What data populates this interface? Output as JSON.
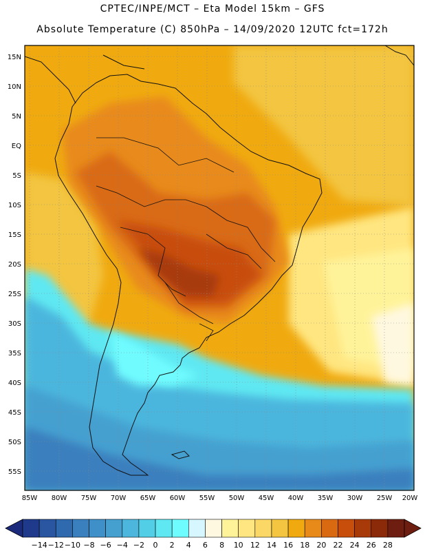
{
  "header": {
    "title_line1": "CPTEC/INPE/MCT –  Eta Model 15km – GFS",
    "title_line2": "Absolute Temperature (C) 850hPa – 14/09/2020 12UTC fct=172h"
  },
  "map": {
    "lat_labels": [
      "15N",
      "10N",
      "5N",
      "EQ",
      "5S",
      "10S",
      "15S",
      "20S",
      "25S",
      "30S",
      "35S",
      "40S",
      "45S",
      "50S",
      "55S"
    ],
    "lon_labels": [
      "85W",
      "80W",
      "75W",
      "70W",
      "65W",
      "60W",
      "55W",
      "50W",
      "45W",
      "40W",
      "35W",
      "30W",
      "25W",
      "20W"
    ],
    "extent": {
      "lon_min": -85.5,
      "lon_max": -19.5,
      "lat_min": -58,
      "lat_max": 17
    }
  },
  "colorbar": {
    "labels": [
      "-14",
      "-12",
      "-10",
      "-8",
      "-6",
      "-4",
      "-2",
      "0",
      "2",
      "4",
      "6",
      "8",
      "10",
      "12",
      "14",
      "16",
      "18",
      "20",
      "22",
      "24",
      "26",
      "28"
    ],
    "colors": [
      "#1f3a8a",
      "#2a55a0",
      "#2f6aae",
      "#3a7fbe",
      "#3f8fc8",
      "#45a0d0",
      "#4cb6dd",
      "#52cfe6",
      "#5fe8f2",
      "#6ffcff",
      "#d6f7ff",
      "#fff8e0",
      "#fff39a",
      "#ffe680",
      "#fbd866",
      "#f3c540",
      "#f0aa10",
      "#e88a1a",
      "#d96a12",
      "#c84e0c",
      "#a83a0a",
      "#8b2a08",
      "#6e1e10"
    ]
  }
}
